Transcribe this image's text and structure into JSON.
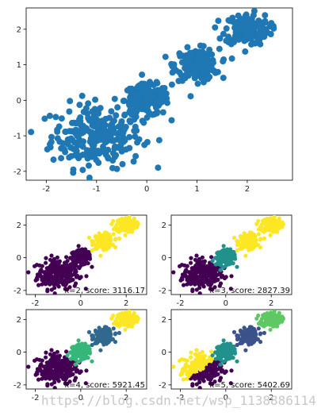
{
  "watermark": "https://blog.csdn.net/wsp_1138886114",
  "colors": {
    "blue": "#1f77b4",
    "viridis_2": [
      "#440154",
      "#fde725"
    ],
    "viridis_3": [
      "#440154",
      "#21918c",
      "#fde725"
    ],
    "viridis_4": [
      "#440154",
      "#31688e",
      "#35b779",
      "#fde725"
    ],
    "viridis_5": [
      "#440154",
      "#3b528b",
      "#21918c",
      "#5ec962",
      "#fde725"
    ]
  },
  "chart_data": [
    {
      "id": "raw",
      "type": "scatter",
      "title": "",
      "xlabel": "",
      "ylabel": "",
      "xlim": [
        -2.4,
        2.9
      ],
      "ylim": [
        -2.25,
        2.6
      ],
      "xticks": [
        "-2",
        "-1",
        "0",
        "1",
        "2"
      ],
      "yticks": [
        "-2",
        "-1",
        "0",
        "1",
        "2"
      ],
      "grid": false,
      "blobs": [
        {
          "center": [
            -1.0,
            -1.0
          ],
          "spread": 0.45,
          "count": 260
        },
        {
          "center": [
            0.0,
            0.0
          ],
          "spread": 0.22,
          "count": 170
        },
        {
          "center": [
            1.0,
            1.0
          ],
          "spread": 0.22,
          "count": 170
        },
        {
          "center": [
            2.0,
            2.0
          ],
          "spread": 0.22,
          "count": 170
        }
      ]
    },
    {
      "id": "k2",
      "type": "scatter",
      "annotation": "k=2, score: 3116.17",
      "xlim": [
        -2.4,
        2.9
      ],
      "ylim": [
        -2.25,
        2.6
      ],
      "xticks": [
        "-2",
        "0",
        "2"
      ],
      "yticks": [
        "-2",
        "0",
        "2"
      ],
      "clusters": 2
    },
    {
      "id": "k3",
      "type": "scatter",
      "annotation": "k=3, score: 2827.39",
      "xlim": [
        -2.4,
        2.9
      ],
      "ylim": [
        -2.25,
        2.6
      ],
      "xticks": [
        "-2",
        "0",
        "2"
      ],
      "yticks": [
        "-2",
        "0",
        "2"
      ],
      "clusters": 3
    },
    {
      "id": "k4",
      "type": "scatter",
      "annotation": "k=4, score: 5921.45",
      "xlim": [
        -2.4,
        2.9
      ],
      "ylim": [
        -2.25,
        2.6
      ],
      "xticks": [
        "-2",
        "0",
        "2"
      ],
      "yticks": [
        "-2",
        "0",
        "2"
      ],
      "clusters": 4
    },
    {
      "id": "k5",
      "type": "scatter",
      "annotation": "k=5, score: 5402.69",
      "xlim": [
        -2.4,
        2.9
      ],
      "ylim": [
        -2.25,
        2.6
      ],
      "xticks": [
        "-2",
        "0",
        "2"
      ],
      "yticks": [
        "-2",
        "0",
        "2"
      ],
      "clusters": 5
    }
  ]
}
